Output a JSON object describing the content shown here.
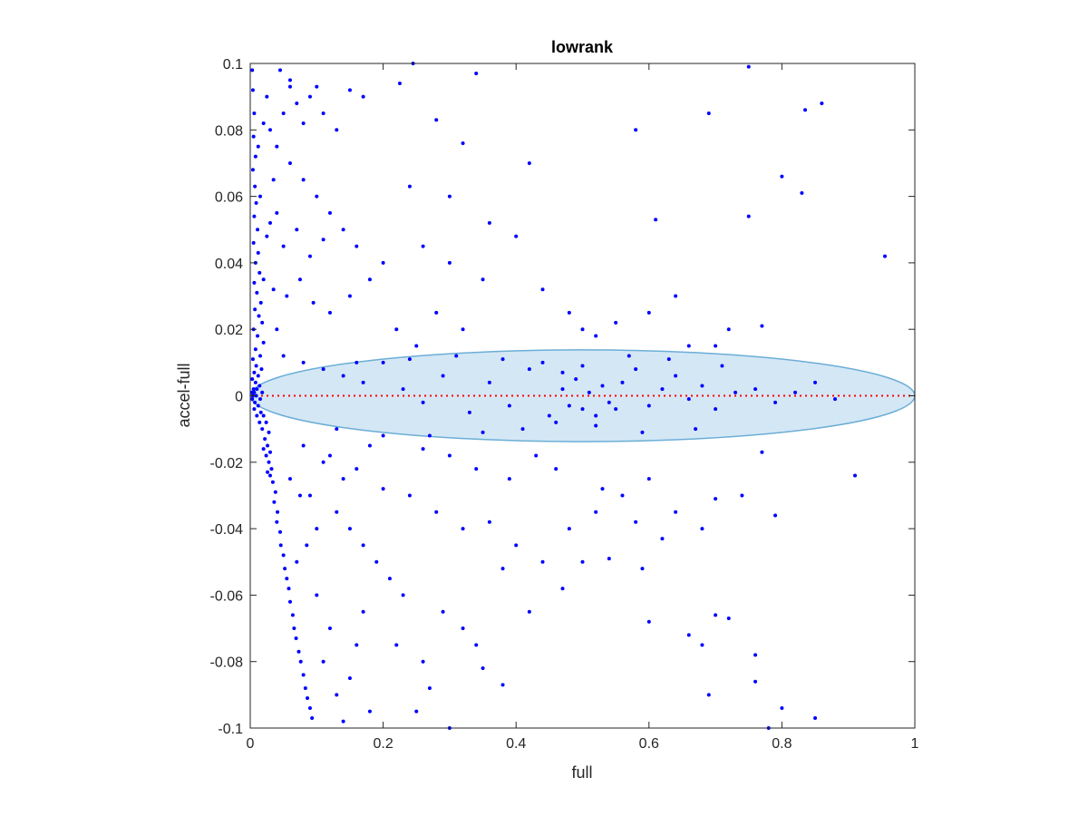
{
  "chart_data": {
    "type": "scatter",
    "title": "lowrank",
    "xlabel": "full",
    "ylabel": "accel-full",
    "xlim": [
      0,
      1
    ],
    "ylim": [
      -0.1,
      0.1
    ],
    "x_ticks": [
      0,
      0.2,
      0.4,
      0.6,
      0.8,
      1
    ],
    "x_tick_labels": [
      "0",
      "0.2",
      "0.4",
      "0.6",
      "0.8",
      "1"
    ],
    "y_ticks": [
      -0.1,
      -0.08,
      -0.06,
      -0.04,
      -0.02,
      0,
      0.02,
      0.04,
      0.06,
      0.08,
      0.1
    ],
    "y_tick_labels": [
      "-0.1",
      "-0.08",
      "-0.06",
      "-0.04",
      "-0.02",
      "0",
      "0.02",
      "0.04",
      "0.06",
      "0.08",
      "0.1"
    ],
    "grid": false,
    "marker_color": "#0000ff",
    "reference_line": {
      "y": 0,
      "style": "dotted",
      "color": "#ff0000"
    },
    "ellipse": {
      "cx": 0.5,
      "cy": 0,
      "rx": 0.5,
      "ry": 0.0138,
      "fill": "#c6dff1",
      "stroke": "#6baed6"
    },
    "series": [
      {
        "points": [
          [
            0.003,
            0.098
          ],
          [
            0.004,
            0.092
          ],
          [
            0.006,
            0.085
          ],
          [
            0.005,
            0.078
          ],
          [
            0.008,
            0.072
          ],
          [
            0.004,
            0.068
          ],
          [
            0.007,
            0.063
          ],
          [
            0.009,
            0.058
          ],
          [
            0.006,
            0.054
          ],
          [
            0.011,
            0.05
          ],
          [
            0.005,
            0.046
          ],
          [
            0.012,
            0.043
          ],
          [
            0.008,
            0.04
          ],
          [
            0.014,
            0.037
          ],
          [
            0.006,
            0.034
          ],
          [
            0.01,
            0.031
          ],
          [
            0.016,
            0.028
          ],
          [
            0.007,
            0.026
          ],
          [
            0.013,
            0.024
          ],
          [
            0.018,
            0.022
          ],
          [
            0.005,
            0.02
          ],
          [
            0.011,
            0.018
          ],
          [
            0.02,
            0.016
          ],
          [
            0.008,
            0.014
          ],
          [
            0.015,
            0.012
          ],
          [
            0.004,
            0.011
          ],
          [
            0.009,
            0.009
          ],
          [
            0.017,
            0.008
          ],
          [
            0.006,
            0.007
          ],
          [
            0.012,
            0.006
          ],
          [
            0.003,
            0.005
          ],
          [
            0.008,
            0.004
          ],
          [
            0.014,
            0.003
          ],
          [
            0.005,
            0.002
          ],
          [
            0.01,
            0.002
          ],
          [
            0.002,
            0.001
          ],
          [
            0.006,
            0.001
          ],
          [
            0.018,
            0.001
          ],
          [
            0.004,
            0
          ],
          [
            0.009,
            0
          ],
          [
            0.015,
            -0.001
          ],
          [
            0.003,
            -0.001
          ],
          [
            0.007,
            -0.002
          ],
          [
            0.012,
            -0.003
          ],
          [
            0.016,
            -0.005
          ],
          [
            0.006,
            -0.004
          ],
          [
            0.02,
            -0.006
          ],
          [
            0.01,
            -0.006
          ],
          [
            0.024,
            -0.008
          ],
          [
            0.014,
            -0.008
          ],
          [
            0.018,
            -0.01
          ],
          [
            0.028,
            -0.011
          ],
          [
            0.022,
            -0.013
          ],
          [
            0.026,
            -0.015
          ],
          [
            0.02,
            -0.016
          ],
          [
            0.03,
            -0.017
          ],
          [
            0.024,
            -0.018
          ],
          [
            0.028,
            -0.02
          ],
          [
            0.032,
            -0.022
          ],
          [
            0.026,
            -0.023
          ],
          [
            0.03,
            -0.024
          ],
          [
            0.034,
            -0.026
          ],
          [
            0.038,
            -0.029
          ],
          [
            0.036,
            -0.032
          ],
          [
            0.041,
            -0.035
          ],
          [
            0.04,
            -0.038
          ],
          [
            0.045,
            -0.041
          ],
          [
            0.046,
            -0.045
          ],
          [
            0.05,
            -0.048
          ],
          [
            0.052,
            -0.052
          ],
          [
            0.055,
            -0.055
          ],
          [
            0.058,
            -0.058
          ],
          [
            0.06,
            -0.062
          ],
          [
            0.064,
            -0.066
          ],
          [
            0.066,
            -0.07
          ],
          [
            0.069,
            -0.073
          ],
          [
            0.073,
            -0.077
          ],
          [
            0.076,
            -0.08
          ],
          [
            0.08,
            -0.084
          ],
          [
            0.083,
            -0.088
          ],
          [
            0.086,
            -0.091
          ],
          [
            0.09,
            -0.094
          ],
          [
            0.093,
            -0.097
          ],
          [
            0.07,
            -0.05
          ],
          [
            0.085,
            -0.045
          ],
          [
            0.1,
            -0.06
          ],
          [
            0.12,
            -0.07
          ],
          [
            0.11,
            -0.08
          ],
          [
            0.13,
            -0.09
          ],
          [
            0.14,
            -0.098
          ],
          [
            0.15,
            -0.085
          ],
          [
            0.16,
            -0.075
          ],
          [
            0.17,
            -0.065
          ],
          [
            0.18,
            -0.095
          ],
          [
            0.09,
            -0.03
          ],
          [
            0.1,
            -0.04
          ],
          [
            0.06,
            -0.025
          ],
          [
            0.075,
            -0.03
          ],
          [
            0.11,
            -0.02
          ],
          [
            0.13,
            -0.035
          ],
          [
            0.025,
            0.09
          ],
          [
            0.03,
            0.08
          ],
          [
            0.04,
            0.075
          ],
          [
            0.05,
            0.085
          ],
          [
            0.06,
            0.093
          ],
          [
            0.07,
            0.088
          ],
          [
            0.08,
            0.082
          ],
          [
            0.09,
            0.09
          ],
          [
            0.1,
            0.093
          ],
          [
            0.11,
            0.085
          ],
          [
            0.13,
            0.08
          ],
          [
            0.15,
            0.092
          ],
          [
            0.17,
            0.09
          ],
          [
            0.06,
            0.07
          ],
          [
            0.08,
            0.065
          ],
          [
            0.1,
            0.06
          ],
          [
            0.12,
            0.055
          ],
          [
            0.04,
            0.055
          ],
          [
            0.05,
            0.045
          ],
          [
            0.07,
            0.05
          ],
          [
            0.09,
            0.042
          ],
          [
            0.11,
            0.047
          ],
          [
            0.14,
            0.05
          ],
          [
            0.16,
            0.045
          ],
          [
            0.035,
            0.032
          ],
          [
            0.055,
            0.03
          ],
          [
            0.075,
            0.035
          ],
          [
            0.095,
            0.028
          ],
          [
            0.12,
            0.025
          ],
          [
            0.15,
            0.03
          ],
          [
            0.18,
            0.035
          ],
          [
            0.2,
            0.04
          ],
          [
            0.24,
            0.063
          ],
          [
            0.28,
            0.083
          ],
          [
            0.32,
            0.076
          ],
          [
            0.34,
            0.097
          ],
          [
            0.245,
            0.1
          ],
          [
            0.225,
            0.094
          ],
          [
            0.3,
            0.06
          ],
          [
            0.36,
            0.052
          ],
          [
            0.42,
            0.07
          ],
          [
            0.26,
            0.045
          ],
          [
            0.3,
            0.04
          ],
          [
            0.35,
            0.035
          ],
          [
            0.4,
            0.048
          ],
          [
            0.44,
            0.032
          ],
          [
            0.48,
            0.025
          ],
          [
            0.5,
            0.02
          ],
          [
            0.52,
            0.018
          ],
          [
            0.55,
            0.022
          ],
          [
            0.58,
            0.08
          ],
          [
            0.61,
            0.053
          ],
          [
            0.64,
            0.03
          ],
          [
            0.69,
            0.085
          ],
          [
            0.75,
            0.054
          ],
          [
            0.77,
            0.021
          ],
          [
            0.8,
            0.066
          ],
          [
            0.83,
            0.061
          ],
          [
            0.835,
            0.086
          ],
          [
            0.86,
            0.088
          ],
          [
            0.955,
            0.042
          ],
          [
            0.75,
            0.099
          ],
          [
            0.6,
            0.025
          ],
          [
            0.66,
            0.015
          ],
          [
            0.7,
            0.015
          ],
          [
            0.72,
            0.02
          ],
          [
            0.22,
            0.02
          ],
          [
            0.25,
            0.015
          ],
          [
            0.28,
            0.025
          ],
          [
            0.32,
            0.02
          ],
          [
            0.05,
            0.012
          ],
          [
            0.08,
            0.01
          ],
          [
            0.11,
            0.008
          ],
          [
            0.14,
            0.006
          ],
          [
            0.17,
            0.004
          ],
          [
            0.2,
            0.01
          ],
          [
            0.23,
            0.002
          ],
          [
            0.26,
            -0.002
          ],
          [
            0.29,
            0.006
          ],
          [
            0.33,
            -0.005
          ],
          [
            0.36,
            0.004
          ],
          [
            0.39,
            -0.003
          ],
          [
            0.42,
            0.008
          ],
          [
            0.45,
            -0.006
          ],
          [
            0.47,
            0.002
          ],
          [
            0.48,
            -0.003
          ],
          [
            0.49,
            0.005
          ],
          [
            0.5,
            -0.004
          ],
          [
            0.51,
            0.001
          ],
          [
            0.52,
            -0.006
          ],
          [
            0.53,
            0.003
          ],
          [
            0.54,
            -0.002
          ],
          [
            0.46,
            -0.008
          ],
          [
            0.47,
            0.007
          ],
          [
            0.5,
            0.009
          ],
          [
            0.52,
            -0.009
          ],
          [
            0.55,
            -0.004
          ],
          [
            0.56,
            0.004
          ],
          [
            0.58,
            0.008
          ],
          [
            0.6,
            -0.003
          ],
          [
            0.62,
            0.002
          ],
          [
            0.64,
            0.006
          ],
          [
            0.66,
            -0.001
          ],
          [
            0.68,
            0.003
          ],
          [
            0.7,
            -0.004
          ],
          [
            0.73,
            0.001
          ],
          [
            0.76,
            0.002
          ],
          [
            0.79,
            -0.002
          ],
          [
            0.82,
            0.001
          ],
          [
            0.85,
            0.004
          ],
          [
            0.88,
            -0.001
          ],
          [
            0.44,
            0.01
          ],
          [
            0.41,
            -0.01
          ],
          [
            0.38,
            0.011
          ],
          [
            0.35,
            -0.011
          ],
          [
            0.31,
            0.012
          ],
          [
            0.27,
            -0.012
          ],
          [
            0.24,
            0.011
          ],
          [
            0.2,
            -0.012
          ],
          [
            0.16,
            0.01
          ],
          [
            0.13,
            -0.01
          ],
          [
            0.57,
            0.012
          ],
          [
            0.59,
            -0.011
          ],
          [
            0.63,
            0.011
          ],
          [
            0.67,
            -0.01
          ],
          [
            0.71,
            0.009
          ],
          [
            0.08,
            -0.015
          ],
          [
            0.12,
            -0.018
          ],
          [
            0.16,
            -0.022
          ],
          [
            0.2,
            -0.028
          ],
          [
            0.24,
            -0.03
          ],
          [
            0.28,
            -0.035
          ],
          [
            0.32,
            -0.04
          ],
          [
            0.36,
            -0.038
          ],
          [
            0.4,
            -0.045
          ],
          [
            0.44,
            -0.05
          ],
          [
            0.48,
            -0.04
          ],
          [
            0.52,
            -0.035
          ],
          [
            0.56,
            -0.03
          ],
          [
            0.6,
            -0.025
          ],
          [
            0.64,
            -0.035
          ],
          [
            0.68,
            -0.04
          ],
          [
            0.7,
            -0.031
          ],
          [
            0.74,
            -0.03
          ],
          [
            0.77,
            -0.017
          ],
          [
            0.79,
            -0.036
          ],
          [
            0.91,
            -0.024
          ],
          [
            0.38,
            -0.052
          ],
          [
            0.47,
            -0.058
          ],
          [
            0.59,
            -0.052
          ],
          [
            0.6,
            -0.068
          ],
          [
            0.66,
            -0.072
          ],
          [
            0.68,
            -0.075
          ],
          [
            0.69,
            -0.09
          ],
          [
            0.7,
            -0.066
          ],
          [
            0.72,
            -0.067
          ],
          [
            0.76,
            -0.078
          ],
          [
            0.76,
            -0.086
          ],
          [
            0.8,
            -0.094
          ],
          [
            0.85,
            -0.097
          ],
          [
            0.78,
            -0.1
          ],
          [
            0.3,
            -0.1
          ],
          [
            0.27,
            -0.088
          ],
          [
            0.25,
            -0.095
          ],
          [
            0.34,
            -0.075
          ],
          [
            0.35,
            -0.082
          ],
          [
            0.38,
            -0.087
          ],
          [
            0.32,
            -0.07
          ],
          [
            0.29,
            -0.065
          ],
          [
            0.23,
            -0.06
          ],
          [
            0.21,
            -0.055
          ],
          [
            0.19,
            -0.05
          ],
          [
            0.17,
            -0.045
          ],
          [
            0.15,
            -0.04
          ],
          [
            0.22,
            -0.075
          ],
          [
            0.26,
            -0.08
          ],
          [
            0.42,
            -0.065
          ],
          [
            0.5,
            -0.05
          ],
          [
            0.54,
            -0.049
          ],
          [
            0.62,
            -0.043
          ],
          [
            0.58,
            -0.038
          ],
          [
            0.53,
            -0.028
          ],
          [
            0.46,
            -0.022
          ],
          [
            0.43,
            -0.018
          ],
          [
            0.39,
            -0.025
          ],
          [
            0.34,
            -0.022
          ],
          [
            0.3,
            -0.018
          ],
          [
            0.26,
            -0.016
          ],
          [
            0.18,
            -0.015
          ],
          [
            0.14,
            -0.025
          ],
          [
            0.06,
            0.095
          ],
          [
            0.045,
            0.098
          ],
          [
            0.035,
            0.065
          ],
          [
            0.025,
            0.048
          ],
          [
            0.02,
            0.035
          ],
          [
            0.015,
            0.06
          ],
          [
            0.012,
            0.075
          ],
          [
            0.02,
            0.082
          ],
          [
            0.03,
            0.052
          ],
          [
            0.04,
            0.02
          ]
        ]
      }
    ]
  }
}
